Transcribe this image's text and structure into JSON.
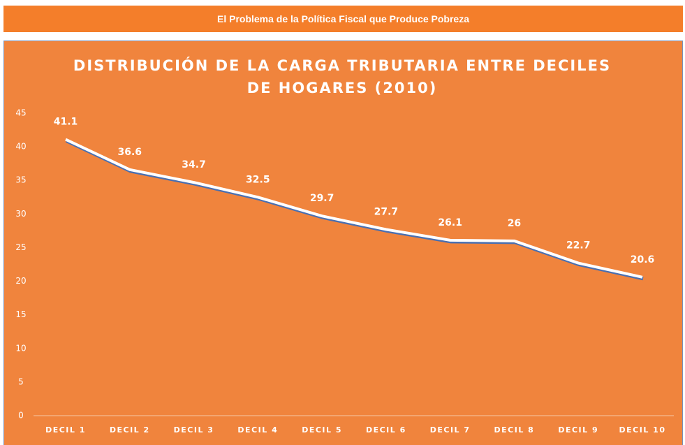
{
  "header": {
    "title": "El Problema de la Política Fiscal que Produce Pobreza"
  },
  "chart_data": {
    "type": "line",
    "title": "DISTRIBUCIÓN DE LA CARGA TRIBUTARIA ENTRE DECILES DE HOGARES (2010)",
    "categories": [
      "DECIL 1",
      "DECIL 2",
      "DECIL 3",
      "DECIL 4",
      "DECIL 5",
      "DECIL 6",
      "DECIL 7",
      "DECIL 8",
      "DECIL 9",
      "DECIL 10"
    ],
    "series": [
      {
        "color": "#ffffff",
        "values": [
          41.1,
          36.6,
          34.7,
          32.5,
          29.7,
          27.7,
          26.1,
          26,
          22.7,
          20.6
        ]
      }
    ],
    "ylim": [
      0,
      45
    ],
    "yticks": [
      0,
      5,
      10,
      15,
      20,
      25,
      30,
      35,
      40,
      45
    ],
    "grid": false
  }
}
